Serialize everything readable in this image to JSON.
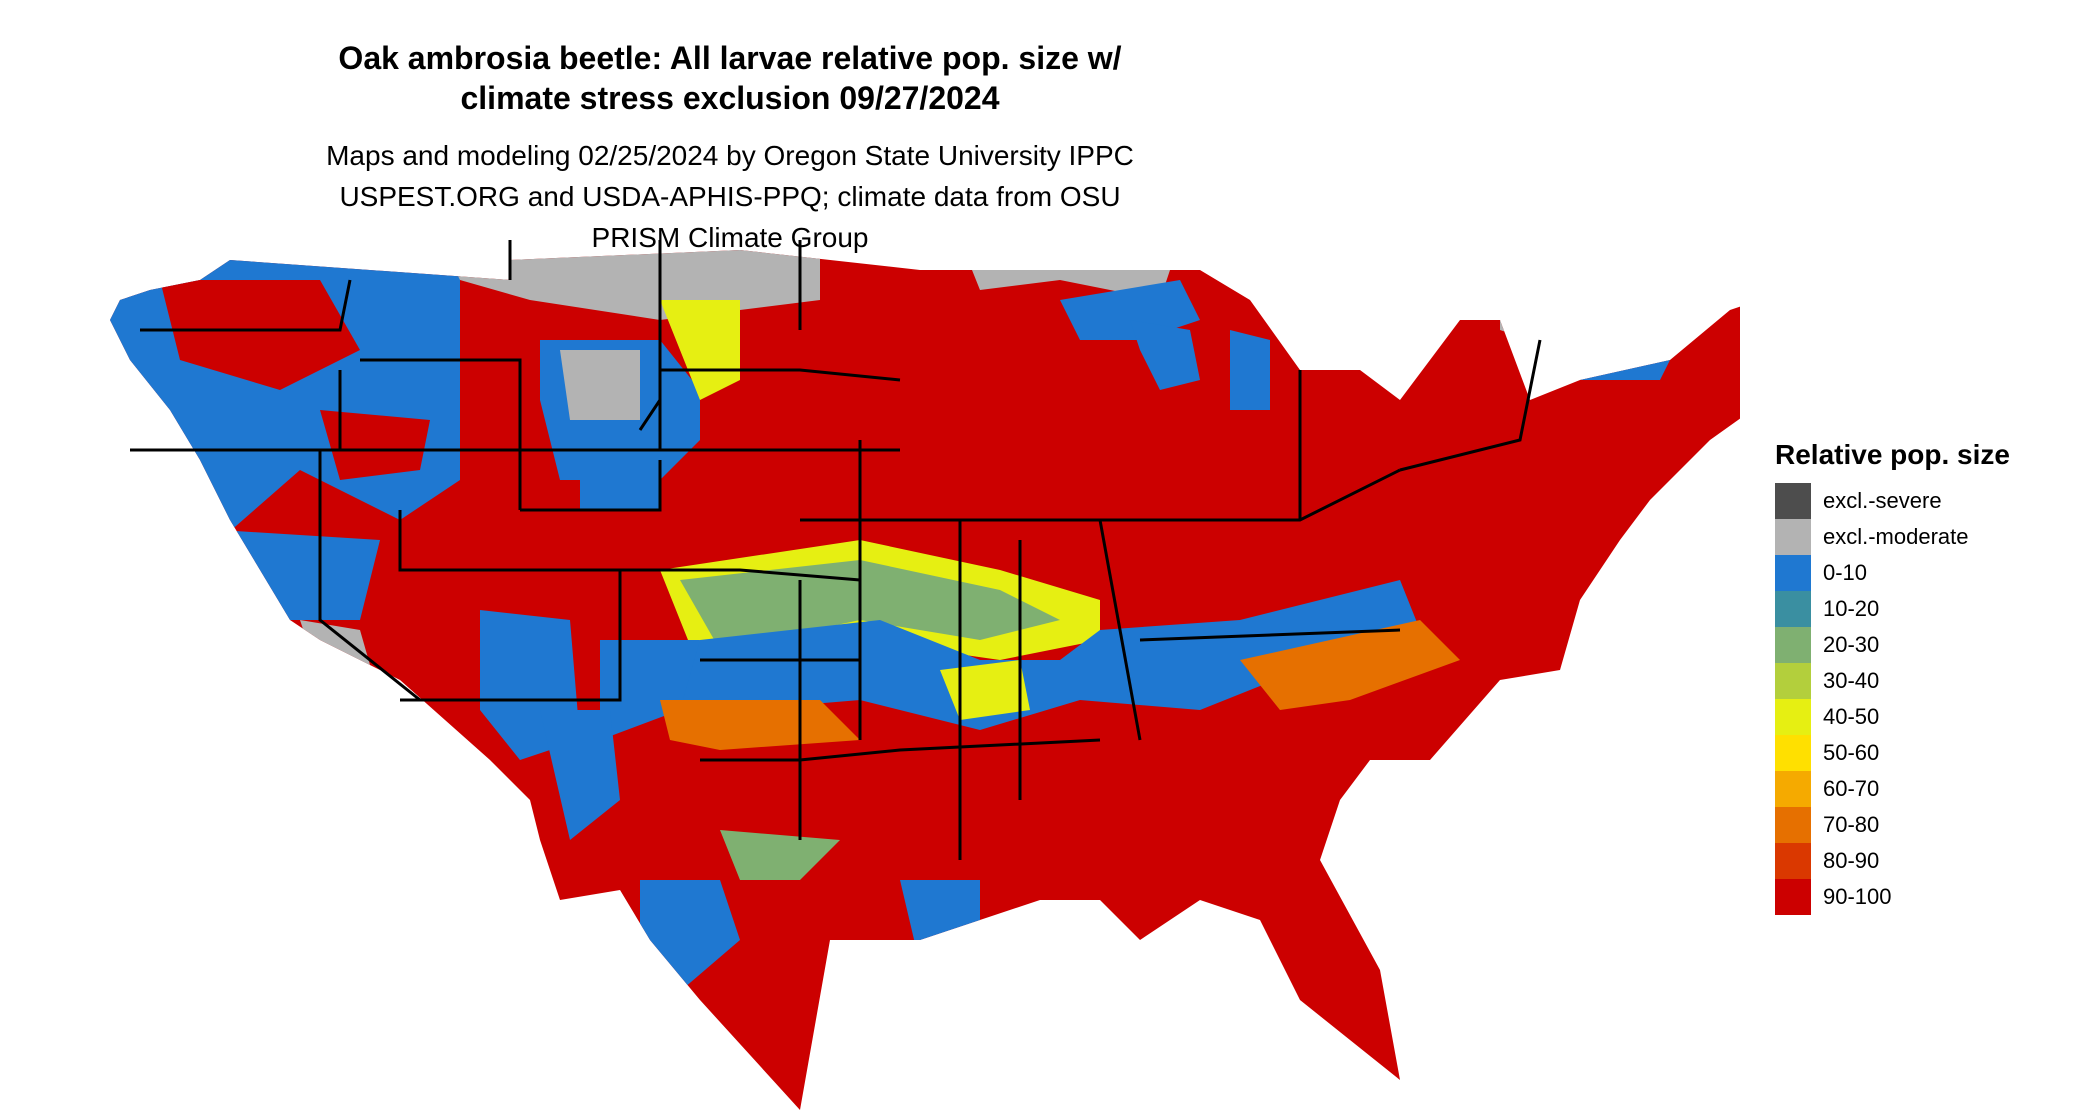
{
  "title": "Oak ambrosia beetle: All larvae relative pop. size w/ climate stress exclusion 09/27/2024",
  "subtitle": "Maps and modeling 02/25/2024 by Oregon State University IPPC USPEST.ORG and USDA-APHIS-PPQ; climate data from OSU PRISM Climate Group",
  "legend": {
    "title": "Relative pop. size",
    "items": [
      {
        "label": "excl.-severe",
        "color": "#4d4d4d"
      },
      {
        "label": "excl.-moderate",
        "color": "#b3b3b3"
      },
      {
        "label": "0-10",
        "color": "#1f78d1"
      },
      {
        "label": "10-20",
        "color": "#3a8fa1"
      },
      {
        "label": "20-30",
        "color": "#7fb071"
      },
      {
        "label": "30-40",
        "color": "#b3cf3c"
      },
      {
        "label": "40-50",
        "color": "#e6ef12"
      },
      {
        "label": "50-60",
        "color": "#ffe000"
      },
      {
        "label": "60-70",
        "color": "#f5aa00"
      },
      {
        "label": "70-80",
        "color": "#e67000"
      },
      {
        "label": "80-90",
        "color": "#da3800"
      },
      {
        "label": "90-100",
        "color": "#cc0000"
      }
    ]
  }
}
